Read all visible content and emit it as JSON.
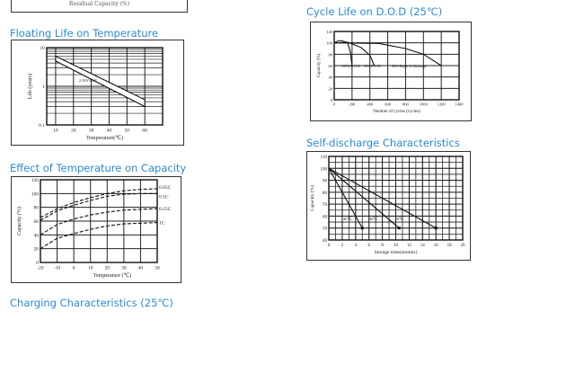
{
  "residual_box": {
    "xlabel": "Residual Capacity (%)"
  },
  "titles": {
    "floating": "Floating Life on Temperature",
    "cycle": "Cycle Life on D.O.D (25℃)",
    "selfdis": "Self-discharge Characteristics",
    "temp": "Effect of Temperature on Capacity",
    "charging": "Charging Characteristics (25℃)"
  },
  "chart_data": [
    {
      "id": "floating",
      "type": "line",
      "title": "Floating Life on Temperature",
      "xlabel": "Temperature(℃)",
      "ylabel": "Life (years)",
      "yscale": "log",
      "xlim": [
        5,
        70
      ],
      "ylim": [
        0.1,
        10
      ],
      "xticks": [
        10,
        20,
        30,
        40,
        50,
        60
      ],
      "yticks": [
        0.1,
        1,
        10
      ],
      "grid": true,
      "annotation": "2.30V/Cell",
      "series": [
        {
          "values": [
            [
              10,
              6
            ],
            [
              60,
              0.45
            ]
          ]
        },
        {
          "values": [
            [
              10,
              4.5
            ],
            [
              60,
              0.3
            ]
          ]
        }
      ]
    },
    {
      "id": "cycle",
      "type": "line",
      "title": "Cycle Life on D.O.D (25℃)",
      "xlabel": "Number of cycles (cycles)",
      "ylabel": "Capacity (%)",
      "xlim": [
        0,
        1400
      ],
      "ylim": [
        0,
        120
      ],
      "xticks": [
        0,
        200,
        400,
        600,
        800,
        1000,
        1200,
        1400
      ],
      "yticks": [
        0,
        20,
        40,
        60,
        80,
        100,
        120
      ],
      "grid": true,
      "series": [
        {
          "name": "100% D.O.D",
          "values": [
            [
              0,
              100
            ],
            [
              50,
              104
            ],
            [
              100,
              103
            ],
            [
              150,
              100
            ],
            [
              180,
              85
            ],
            [
              200,
              60
            ]
          ]
        },
        {
          "name": "50% D.O.D",
          "values": [
            [
              0,
              100
            ],
            [
              150,
              101
            ],
            [
              300,
              92
            ],
            [
              400,
              78
            ],
            [
              450,
              60
            ]
          ]
        },
        {
          "name": "30% Depth of discharge",
          "values": [
            [
              0,
              100
            ],
            [
              500,
              99
            ],
            [
              800,
              90
            ],
            [
              1000,
              80
            ],
            [
              1200,
              60
            ]
          ]
        }
      ]
    },
    {
      "id": "selfdis",
      "type": "line",
      "title": "Self-discharge Characteristics",
      "xlabel": "Storage time(months)",
      "ylabel": "Capacity (%)",
      "xlim": [
        0,
        20
      ],
      "ylim": [
        40,
        110
      ],
      "xticks": [
        0,
        2,
        4,
        6,
        8,
        10,
        12,
        14,
        16,
        18,
        20
      ],
      "yticks": [
        40,
        50,
        60,
        70,
        80,
        90,
        100,
        110
      ],
      "grid": true,
      "series": [
        {
          "name": "40℃",
          "values": [
            [
              0,
              100
            ],
            [
              5,
              50
            ]
          ]
        },
        {
          "name": "30℃",
          "values": [
            [
              0,
              100
            ],
            [
              10.5,
              50
            ]
          ]
        },
        {
          "name": "20℃",
          "values": [
            [
              0,
              100
            ],
            [
              16,
              50
            ]
          ]
        }
      ]
    },
    {
      "id": "temp",
      "type": "line",
      "title": "Effect of Temperature on Capacity",
      "xlabel": "Temperature (℃)",
      "ylabel": "Capacity (%)",
      "xlim": [
        -20,
        50
      ],
      "ylim": [
        0,
        120
      ],
      "xticks": [
        -20,
        -10,
        0,
        10,
        20,
        30,
        40,
        50
      ],
      "yticks": [
        0,
        20,
        40,
        60,
        80,
        100,
        120
      ],
      "grid": true,
      "series": [
        {
          "name": "0.05C",
          "values": [
            [
              -20,
              65
            ],
            [
              -10,
              78
            ],
            [
              0,
              87
            ],
            [
              10,
              94
            ],
            [
              20,
              100
            ],
            [
              30,
              104
            ],
            [
              40,
              106
            ],
            [
              50,
              107
            ]
          ]
        },
        {
          "name": "0.1C",
          "values": [
            [
              -20,
              61
            ],
            [
              -10,
              75
            ],
            [
              0,
              83
            ],
            [
              10,
              90
            ],
            [
              20,
              96
            ],
            [
              30,
              99
            ],
            [
              40,
              100
            ],
            [
              50,
              100
            ]
          ]
        },
        {
          "name": "0.25C",
          "values": [
            [
              -20,
              40
            ],
            [
              -10,
              55
            ],
            [
              0,
              63
            ],
            [
              10,
              69
            ],
            [
              20,
              73
            ],
            [
              30,
              76
            ],
            [
              40,
              77
            ],
            [
              50,
              78
            ]
          ]
        },
        {
          "name": "1C",
          "values": [
            [
              -20,
              20
            ],
            [
              -10,
              35
            ],
            [
              0,
              42
            ],
            [
              10,
              48
            ],
            [
              20,
              53
            ],
            [
              30,
              56
            ],
            [
              40,
              57
            ],
            [
              50,
              58
            ]
          ]
        }
      ]
    }
  ]
}
